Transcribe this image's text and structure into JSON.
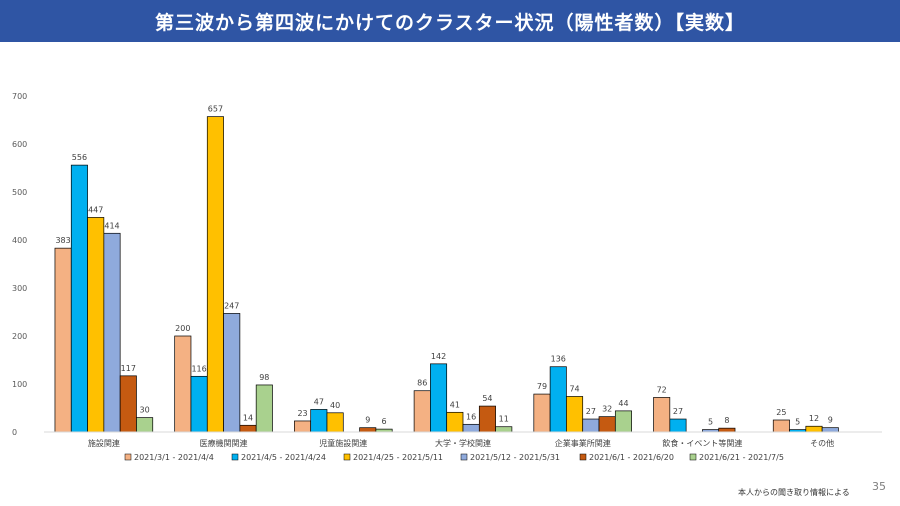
{
  "title": "第三波から第四波にかけてのクラスター状況（陽性者数）【実数】",
  "source_note": "本人からの聞き取り情報による",
  "page_number": "35",
  "chart_data": {
    "type": "bar",
    "categories": [
      "施設関連",
      "医療機関関連",
      "児童施設関連",
      "大学・学校関連",
      "企業事業所関連",
      "飲食・イベント等関連",
      "その他"
    ],
    "series": [
      {
        "name": "2021/3/1 - 2021/4/4",
        "color": "#f4b183",
        "values": [
          383,
          200,
          23,
          86,
          79,
          72,
          25
        ]
      },
      {
        "name": "2021/4/5 - 2021/4/24",
        "color": "#00b0f0",
        "values": [
          556,
          116,
          47,
          142,
          136,
          27,
          5
        ]
      },
      {
        "name": "2021/4/25 - 2021/5/11",
        "color": "#ffc000",
        "values": [
          447,
          657,
          40,
          41,
          74,
          null,
          12
        ]
      },
      {
        "name": "2021/5/12 - 2021/5/31",
        "color": "#8faadc",
        "values": [
          414,
          247,
          null,
          16,
          27,
          5,
          9
        ]
      },
      {
        "name": "2021/6/1 - 2021/6/20",
        "color": "#c55a11",
        "values": [
          117,
          14,
          9,
          54,
          32,
          8,
          null
        ]
      },
      {
        "name": "2021/6/21 - 2021/7/5",
        "color": "#a9d18e",
        "values": [
          30,
          98,
          6,
          11,
          44,
          null,
          null
        ]
      }
    ],
    "ylim": [
      0,
      700
    ],
    "yticks": [
      0,
      100,
      200,
      300,
      400,
      500,
      600,
      700
    ],
    "grid": false,
    "legend": "bottom"
  }
}
